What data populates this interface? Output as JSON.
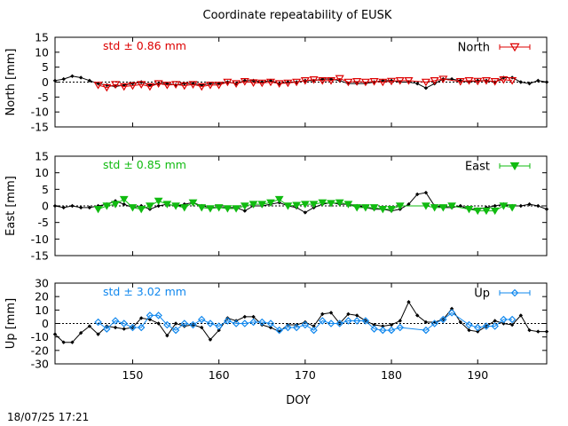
{
  "title": "Coordinate repeatability of EUSK",
  "xlabel": "DOY",
  "timestamp": "18/07/25 17:21",
  "colors": {
    "north": "#dd0000",
    "east": "#11bb11",
    "up": "#1188ee",
    "ref": "#000000"
  },
  "chart_data": [
    {
      "type": "line",
      "ylabel": "North [mm]",
      "xlim": [
        141,
        198
      ],
      "ylim": [
        -15,
        15
      ],
      "xticks": [
        150,
        160,
        170,
        180,
        190
      ],
      "yticks": [
        -15,
        -10,
        -5,
        0,
        5,
        10,
        15
      ],
      "grid": false,
      "legend": "top-right",
      "std_label": "std ± 0.86 mm",
      "series": [
        {
          "name": "",
          "style": "black-line-diamond",
          "x": [
            141,
            142,
            143,
            144,
            145,
            146,
            147,
            148,
            149,
            150,
            151,
            152,
            153,
            154,
            155,
            156,
            157,
            158,
            159,
            160,
            161,
            162,
            163,
            164,
            165,
            166,
            167,
            168,
            169,
            170,
            171,
            172,
            173,
            174,
            175,
            176,
            177,
            178,
            179,
            180,
            181,
            182,
            183,
            184,
            185,
            186,
            187,
            188,
            189,
            190,
            191,
            192,
            193,
            194,
            195,
            196,
            197,
            198
          ],
          "y": [
            0.5,
            1.0,
            2.0,
            1.5,
            0.5,
            -0.5,
            -1.0,
            -1.5,
            -1.0,
            -0.5,
            0.0,
            -1.0,
            -0.5,
            -0.5,
            -1.0,
            -0.5,
            -0.5,
            -1.0,
            -0.5,
            -0.5,
            0.0,
            -0.5,
            0.5,
            0.5,
            0.0,
            0.5,
            -0.5,
            0.0,
            0.0,
            0.5,
            0.5,
            1.0,
            1.0,
            0.5,
            -0.5,
            -0.5,
            -0.5,
            0.0,
            0.5,
            0.5,
            0.0,
            0.0,
            -0.5,
            -2.0,
            -0.5,
            1.0,
            1.0,
            0.5,
            0.0,
            0.5,
            0.5,
            0.0,
            1.5,
            1.5,
            0.0,
            -0.5,
            0.5,
            0.0
          ]
        },
        {
          "name": "North",
          "style": "open-triangle",
          "x": [
            146,
            147,
            148,
            149,
            150,
            151,
            152,
            153,
            154,
            155,
            156,
            157,
            158,
            159,
            160,
            161,
            162,
            163,
            164,
            165,
            166,
            167,
            168,
            169,
            170,
            171,
            172,
            173,
            174,
            175,
            176,
            177,
            178,
            179,
            180,
            181,
            182,
            184,
            185,
            186,
            188,
            189,
            190,
            191,
            192,
            193,
            194
          ],
          "y": [
            -1.0,
            -1.8,
            -0.8,
            -1.5,
            -1.2,
            -0.8,
            -1.5,
            -0.5,
            -1.0,
            -0.8,
            -1.2,
            -0.8,
            -1.5,
            -1.0,
            -1.0,
            0.0,
            -0.5,
            0.2,
            -0.2,
            -0.3,
            0.0,
            -0.5,
            -0.3,
            0.0,
            0.5,
            0.8,
            0.5,
            0.5,
            1.2,
            0.0,
            0.2,
            0.0,
            0.2,
            0.0,
            0.3,
            0.5,
            0.5,
            0.0,
            0.5,
            1.0,
            0.2,
            0.5,
            0.3,
            0.5,
            0.2,
            0.8,
            0.5
          ]
        }
      ]
    },
    {
      "type": "line",
      "ylabel": "East [mm]",
      "xlim": [
        141,
        198
      ],
      "ylim": [
        -15,
        15
      ],
      "xticks": [
        150,
        160,
        170,
        180,
        190
      ],
      "yticks": [
        -15,
        -10,
        -5,
        0,
        5,
        10,
        15
      ],
      "grid": false,
      "legend": "top-right",
      "std_label": "std ± 0.85 mm",
      "series": [
        {
          "name": "",
          "style": "black-line-diamond",
          "x": [
            141,
            142,
            143,
            144,
            145,
            146,
            147,
            148,
            149,
            150,
            151,
            152,
            153,
            154,
            155,
            156,
            157,
            158,
            159,
            160,
            161,
            162,
            163,
            164,
            165,
            166,
            167,
            168,
            169,
            170,
            171,
            172,
            173,
            174,
            175,
            176,
            177,
            178,
            179,
            180,
            181,
            182,
            183,
            184,
            185,
            186,
            187,
            188,
            189,
            190,
            191,
            192,
            193,
            194,
            195,
            196,
            197,
            198
          ],
          "y": [
            0.0,
            -0.5,
            0.0,
            -0.5,
            -0.5,
            0.0,
            0.5,
            1.5,
            0.5,
            -0.5,
            0.0,
            -1.0,
            0.0,
            0.5,
            0.0,
            0.5,
            1.0,
            0.0,
            -0.5,
            -0.5,
            -0.5,
            -0.5,
            -1.5,
            0.0,
            0.0,
            0.5,
            1.0,
            0.0,
            -0.5,
            -2.0,
            -0.5,
            0.5,
            1.0,
            0.5,
            0.5,
            0.0,
            -0.5,
            -1.0,
            -1.0,
            -1.5,
            -1.0,
            0.5,
            3.5,
            4.0,
            0.0,
            -0.5,
            -0.5,
            0.0,
            -1.0,
            -1.0,
            -0.5,
            0.0,
            0.5,
            0.0,
            0.0,
            0.5,
            0.0,
            -1.0
          ]
        },
        {
          "name": "East",
          "style": "filled-triangle",
          "x": [
            146,
            147,
            148,
            149,
            150,
            151,
            152,
            153,
            154,
            155,
            156,
            157,
            158,
            159,
            160,
            161,
            162,
            163,
            164,
            165,
            166,
            167,
            168,
            169,
            170,
            171,
            172,
            173,
            174,
            175,
            176,
            177,
            178,
            179,
            180,
            181,
            184,
            185,
            186,
            187,
            189,
            190,
            191,
            192,
            193,
            194
          ],
          "y": [
            -1.0,
            0.0,
            0.5,
            2.0,
            -0.5,
            -1.0,
            0.0,
            1.5,
            0.5,
            0.0,
            -0.5,
            1.0,
            -0.5,
            -0.8,
            -0.5,
            -0.8,
            -0.8,
            0.0,
            0.5,
            0.5,
            1.0,
            2.0,
            0.0,
            0.2,
            0.5,
            0.5,
            1.0,
            0.8,
            1.0,
            0.5,
            -0.5,
            -0.5,
            -0.5,
            -1.0,
            -1.0,
            0.0,
            0.0,
            -0.5,
            -0.5,
            0.0,
            -1.0,
            -1.5,
            -1.5,
            -1.5,
            0.0,
            -0.5
          ]
        }
      ]
    },
    {
      "type": "line",
      "ylabel": "Up [mm]",
      "xlim": [
        141,
        198
      ],
      "ylim": [
        -30,
        30
      ],
      "xticks": [
        150,
        160,
        170,
        180,
        190
      ],
      "yticks": [
        -30,
        -20,
        -10,
        0,
        10,
        20,
        30
      ],
      "grid": false,
      "legend": "top-right",
      "std_label": "std ± 3.02 mm",
      "series": [
        {
          "name": "",
          "style": "black-line-diamond",
          "x": [
            141,
            142,
            143,
            144,
            145,
            146,
            147,
            148,
            149,
            150,
            151,
            152,
            153,
            154,
            155,
            156,
            157,
            158,
            159,
            160,
            161,
            162,
            163,
            164,
            165,
            166,
            167,
            168,
            169,
            170,
            171,
            172,
            173,
            174,
            175,
            176,
            177,
            178,
            179,
            180,
            181,
            182,
            183,
            184,
            185,
            186,
            187,
            188,
            189,
            190,
            191,
            192,
            193,
            194,
            195,
            196,
            197,
            198
          ],
          "y": [
            -8,
            -14,
            -14,
            -7,
            -2,
            -8,
            -2,
            -3,
            -4,
            -3,
            4,
            3,
            0,
            -9,
            0,
            -2,
            -1,
            -3,
            -12,
            -5,
            4,
            2,
            5,
            5,
            -1,
            -3,
            -6,
            -1,
            -1,
            1,
            -2,
            7,
            8,
            0,
            7,
            6,
            2,
            -1,
            -2,
            -1,
            2,
            16,
            6,
            1,
            1,
            3,
            11,
            1,
            -5,
            -6,
            -2,
            2,
            0,
            -1,
            6,
            -5,
            -6,
            -6
          ]
        },
        {
          "name": "Up",
          "style": "open-diamond",
          "x": [
            146,
            147,
            148,
            149,
            150,
            151,
            152,
            153,
            154,
            155,
            156,
            157,
            158,
            159,
            160,
            161,
            162,
            163,
            164,
            165,
            166,
            167,
            168,
            169,
            170,
            171,
            172,
            173,
            174,
            175,
            176,
            177,
            178,
            179,
            180,
            181,
            184,
            185,
            186,
            187,
            189,
            190,
            191,
            192,
            193,
            194
          ],
          "y": [
            1,
            -4,
            2,
            0,
            -3,
            -3,
            6,
            6,
            -1,
            -5,
            0,
            -1,
            3,
            0,
            -2,
            2,
            0,
            0,
            1,
            1,
            0,
            -5,
            -3,
            -3,
            -1,
            -5,
            2,
            0,
            0,
            2,
            2,
            2,
            -4,
            -5,
            -5,
            -3,
            -5,
            0,
            3,
            8,
            -1,
            -3,
            -2,
            -2,
            3,
            3
          ]
        }
      ]
    }
  ]
}
